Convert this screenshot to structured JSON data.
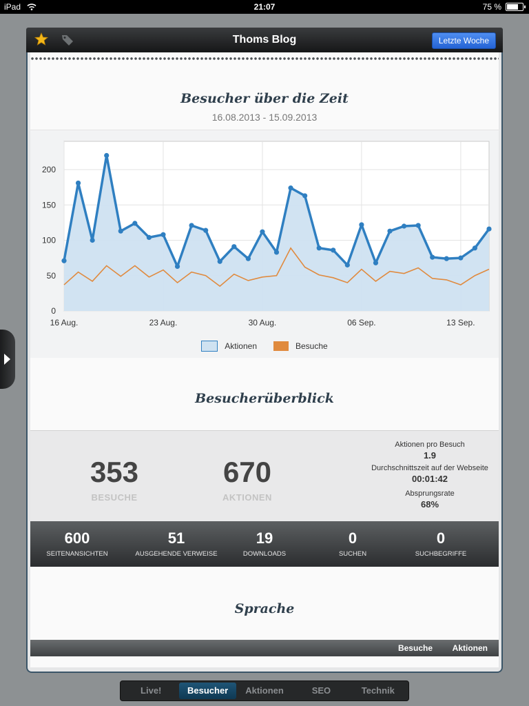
{
  "status_bar": {
    "device": "iPad",
    "time": "21:07",
    "battery": "75 %",
    "battery_level": 0.75
  },
  "toolbar": {
    "title": "Thoms Blog",
    "period_button": "Letzte Woche"
  },
  "visitors_chart": {
    "title": "Besucher über die Zeit",
    "date_range": "16.08.2013 - 15.09.2013"
  },
  "chart_data": {
    "type": "area",
    "x": [
      "2013-08-16",
      "2013-08-17",
      "2013-08-18",
      "2013-08-19",
      "2013-08-20",
      "2013-08-21",
      "2013-08-22",
      "2013-08-23",
      "2013-08-24",
      "2013-08-25",
      "2013-08-26",
      "2013-08-27",
      "2013-08-28",
      "2013-08-29",
      "2013-08-30",
      "2013-08-31",
      "2013-09-01",
      "2013-09-02",
      "2013-09-03",
      "2013-09-04",
      "2013-09-05",
      "2013-09-06",
      "2013-09-07",
      "2013-09-08",
      "2013-09-09",
      "2013-09-10",
      "2013-09-11",
      "2013-09-12",
      "2013-09-13",
      "2013-09-14",
      "2013-09-15"
    ],
    "x_tick_labels": [
      "16 Aug.",
      "23 Aug.",
      "30 Aug.",
      "06 Sep.",
      "13 Sep."
    ],
    "x_tick_indices": [
      0,
      7,
      14,
      21,
      28
    ],
    "series": [
      {
        "name": "Aktionen",
        "color": "#2f7fc1",
        "fill": "#cfe2f1",
        "values": [
          71,
          181,
          100,
          220,
          113,
          124,
          104,
          108,
          63,
          121,
          114,
          70,
          91,
          74,
          112,
          83,
          174,
          163,
          89,
          86,
          65,
          122,
          68,
          113,
          120,
          121,
          76,
          74,
          75,
          89,
          116
        ]
      },
      {
        "name": "Besuche",
        "color": "#e08a3e",
        "values": [
          37,
          55,
          42,
          64,
          49,
          64,
          48,
          58,
          40,
          55,
          50,
          35,
          52,
          43,
          48,
          50,
          89,
          62,
          51,
          47,
          40,
          59,
          42,
          56,
          53,
          61,
          46,
          44,
          37,
          50,
          59
        ]
      }
    ],
    "ylim": [
      0,
      240
    ],
    "y_ticks": [
      0,
      50,
      100,
      150,
      200
    ],
    "grid": true,
    "legend_position": "bottom-center"
  },
  "overview": {
    "title": "Besucherüberblick",
    "visits": {
      "value": "353",
      "label": "BESUCHE"
    },
    "actions": {
      "value": "670",
      "label": "AKTIONEN"
    },
    "side": [
      {
        "label": "Aktionen pro Besuch",
        "value": "1.9"
      },
      {
        "label": "Durchschnittszeit auf der Webseite",
        "value": "00:01:42"
      },
      {
        "label": "Absprungsrate",
        "value": "68%"
      }
    ]
  },
  "stats": [
    {
      "value": "600",
      "label": "SEITENANSICHTEN"
    },
    {
      "value": "51",
      "label": "AUSGEHENDE VERWEISE"
    },
    {
      "value": "19",
      "label": "DOWNLOADS"
    },
    {
      "value": "0",
      "label": "SUCHEN"
    },
    {
      "value": "0",
      "label": "SUCHBEGRIFFE"
    }
  ],
  "language": {
    "title": "Sprache",
    "col_visits": "Besuche",
    "col_actions": "Aktionen"
  },
  "tabs": [
    "Live!",
    "Besucher",
    "Aktionen",
    "SEO",
    "Technik"
  ],
  "active_tab": "Besucher",
  "icons": {
    "favorite": "star-icon",
    "tags": "tag-icon",
    "sidebar": "sidebar-handle-arrow-icon"
  }
}
